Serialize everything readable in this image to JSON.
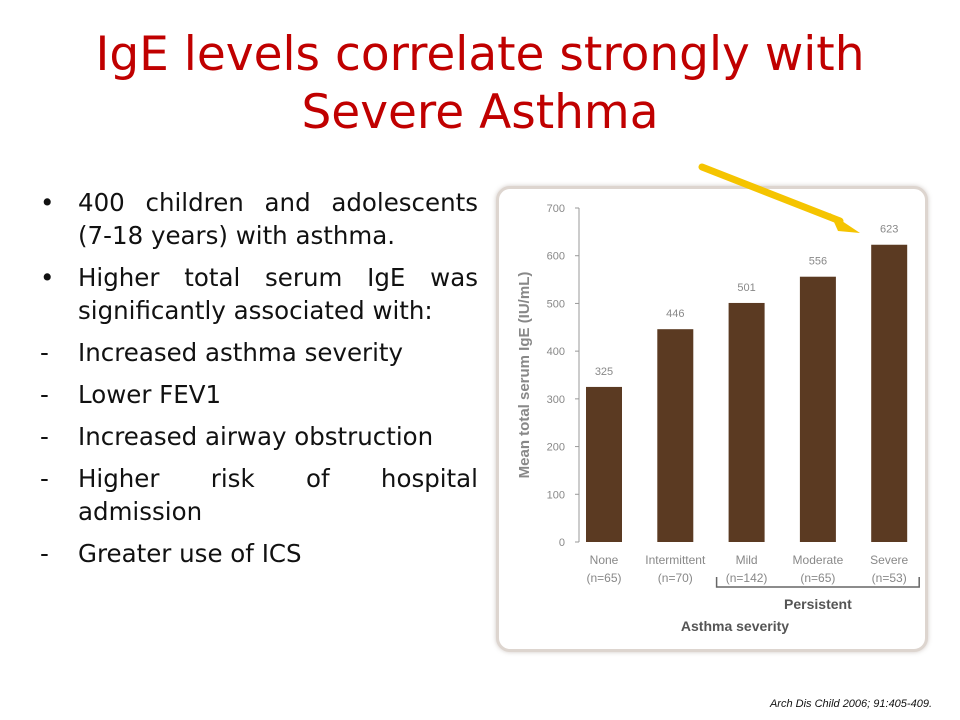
{
  "slide": {
    "title_line1": "IgE levels correlate strongly with",
    "title_line2": "Severe Asthma",
    "citation": "Arch Dis Child 2006;  91:405-409."
  },
  "bullets": [
    {
      "marker": "•",
      "text": "400 children and adolescents (7-18 years) with asthma."
    },
    {
      "marker": "•",
      "text": "Higher total serum IgE was significantly associated with:"
    },
    {
      "marker": "-",
      "text": "Increased asthma severity"
    },
    {
      "marker": "-",
      "text": "Lower FEV1"
    },
    {
      "marker": "-",
      "text": "Increased airway obstruction"
    },
    {
      "marker": "-",
      "text": "Higher risk of hospital admission"
    },
    {
      "marker": "-",
      "text": "Greater use of ICS"
    }
  ],
  "colors": {
    "title": "#c00000",
    "bar": "#5b3a22",
    "arrow": "#f5c400"
  },
  "chart_data": {
    "type": "bar",
    "categories": [
      "None",
      "Intermittent",
      "Mild",
      "Moderate",
      "Severe"
    ],
    "category_counts": [
      "(n=65)",
      "(n=70)",
      "(n=142)",
      "(n=65)",
      "(n=53)"
    ],
    "values": [
      325,
      446,
      501,
      556,
      623
    ],
    "data_labels": [
      "325",
      "446",
      "501",
      "556",
      "623"
    ],
    "ylabel": "Mean total serum IgE (IU/mL)",
    "xlabel": "Asthma severity",
    "group_label": "Persistent",
    "group_categories": [
      "Mild",
      "Moderate",
      "Severe"
    ],
    "ylim": [
      0,
      700
    ],
    "yticks": [
      "0",
      "100",
      "200",
      "300",
      "400",
      "500",
      "600",
      "700"
    ],
    "grid": false,
    "legend": "none"
  }
}
